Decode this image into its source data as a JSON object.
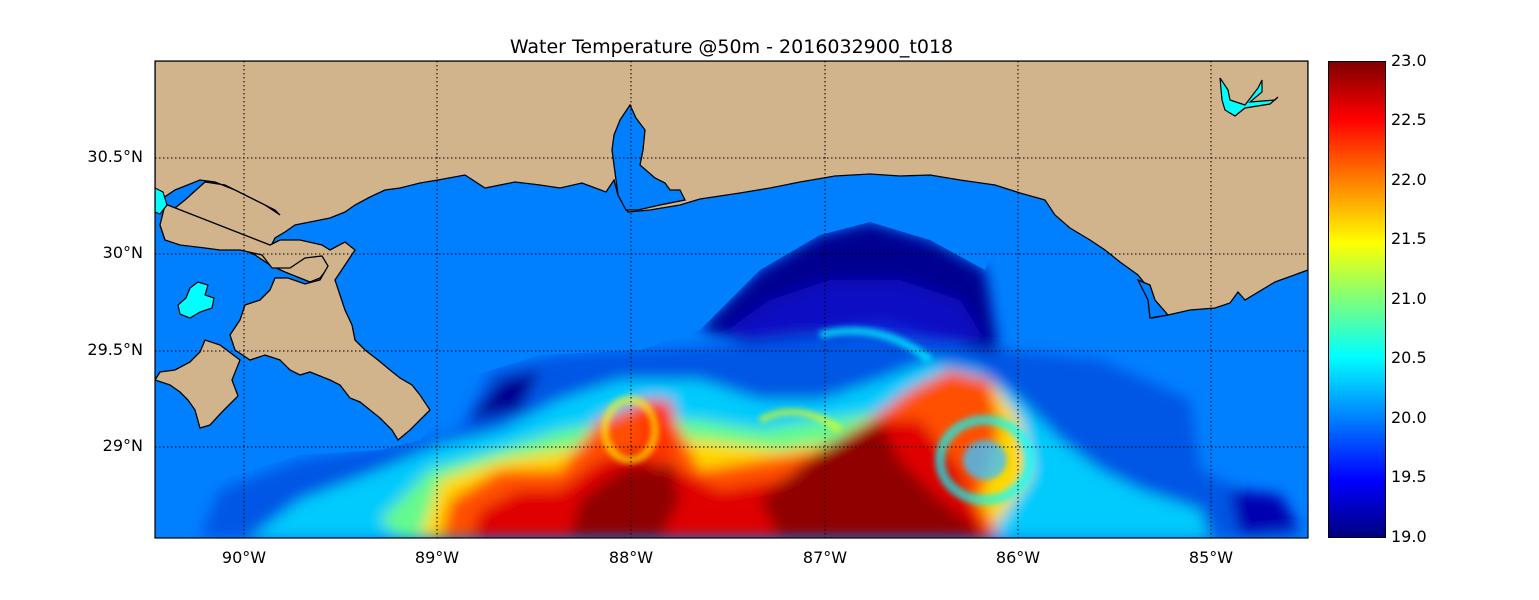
{
  "title": "Water Temperature @50m - 2016032900_t018",
  "colors": {
    "land": "#d2b48c",
    "ocean": "#0080ff",
    "lake": "#00ffff"
  },
  "y_ticks": [
    "30.5°N",
    "30°N",
    "29.5°N",
    "29°N"
  ],
  "x_ticks": [
    "90°W",
    "89°W",
    "88°W",
    "87°W",
    "86°W",
    "85°W"
  ],
  "colorbar": {
    "colormap": "jet",
    "min": 19.0,
    "max": 23.0,
    "ticks": [
      "23.0",
      "22.5",
      "22.0",
      "21.5",
      "21.0",
      "20.5",
      "20.0",
      "19.5",
      "19.0"
    ]
  }
}
